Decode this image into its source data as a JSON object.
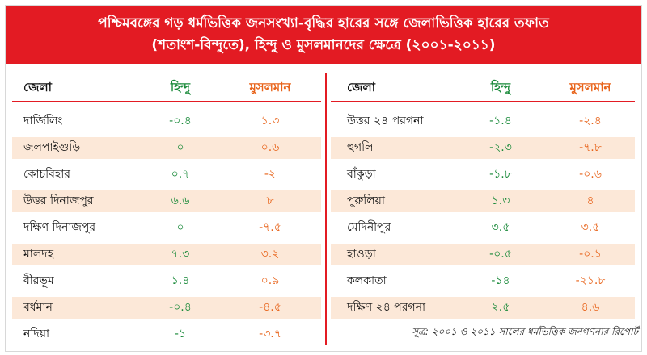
{
  "title": {
    "line1": "পশ্চিমবঙ্গের গড় ধর্মভিত্তিক জনসংখ্যা-বৃদ্ধির হারের সঙ্গে জেলাভিত্তিক হারের তফাত",
    "line2": "(শতাংশ-বিন্দুতে), হিন্দু ও মুসলমানদের ক্ষেত্রে (২০০১-২০১১)"
  },
  "columns": {
    "district": "জেলা",
    "hindu": "হিন্দু",
    "muslim": "মুসলমান"
  },
  "colors": {
    "accent": "#e31b23",
    "hindu": "#1a8a3a",
    "muslim": "#e8641b",
    "shade": "#fce8d8"
  },
  "left_rows": [
    {
      "district": "দার্জিলিং",
      "hindu": "-০.৪",
      "muslim": "১.৩"
    },
    {
      "district": "জলপাইগুড়ি",
      "hindu": "০",
      "muslim": "০.৬"
    },
    {
      "district": "কোচবিহার",
      "hindu": "০.৭",
      "muslim": "-২"
    },
    {
      "district": "উত্তর দিনাজপুর",
      "hindu": "৬.৬",
      "muslim": "৮"
    },
    {
      "district": "দক্ষিণ দিনাজপুর",
      "hindu": "০",
      "muslim": "-৭.৫"
    },
    {
      "district": "মালদহ",
      "hindu": "৭.৩",
      "muslim": "৩.২"
    },
    {
      "district": "বীরভূম",
      "hindu": "১.৪",
      "muslim": "০.৯"
    },
    {
      "district": "বর্ধমান",
      "hindu": "-০.৪",
      "muslim": "-৪.৫"
    },
    {
      "district": "নদিয়া",
      "hindu": "-১",
      "muslim": "-৩.৭"
    }
  ],
  "right_rows": [
    {
      "district": "উত্তর ২৪ পরগনা",
      "hindu": "-১.৪",
      "muslim": "-২.৪"
    },
    {
      "district": "হুগলি",
      "hindu": "-২.৩",
      "muslim": "-৭.৮"
    },
    {
      "district": "বাঁকুড়া",
      "hindu": "-১.৮",
      "muslim": "-০.৬"
    },
    {
      "district": "পুরুলিয়া",
      "hindu": "১.৩",
      "muslim": "৪"
    },
    {
      "district": "মেদিনীপুর",
      "hindu": "৩.৫",
      "muslim": "৩.৫"
    },
    {
      "district": "হাওড়া",
      "hindu": "-০.৫",
      "muslim": "-০.১"
    },
    {
      "district": "কলকাতা",
      "hindu": "-১৪",
      "muslim": "-২১.৮"
    },
    {
      "district": "দক্ষিণ ২৪ পরগনা",
      "hindu": "২.৫",
      "muslim": "৪.৬"
    }
  ],
  "source": "সূত্র: ২০০১ ও ২০১১ সালের ধর্মভিত্তিক জনগণনার রিপোর্ট"
}
